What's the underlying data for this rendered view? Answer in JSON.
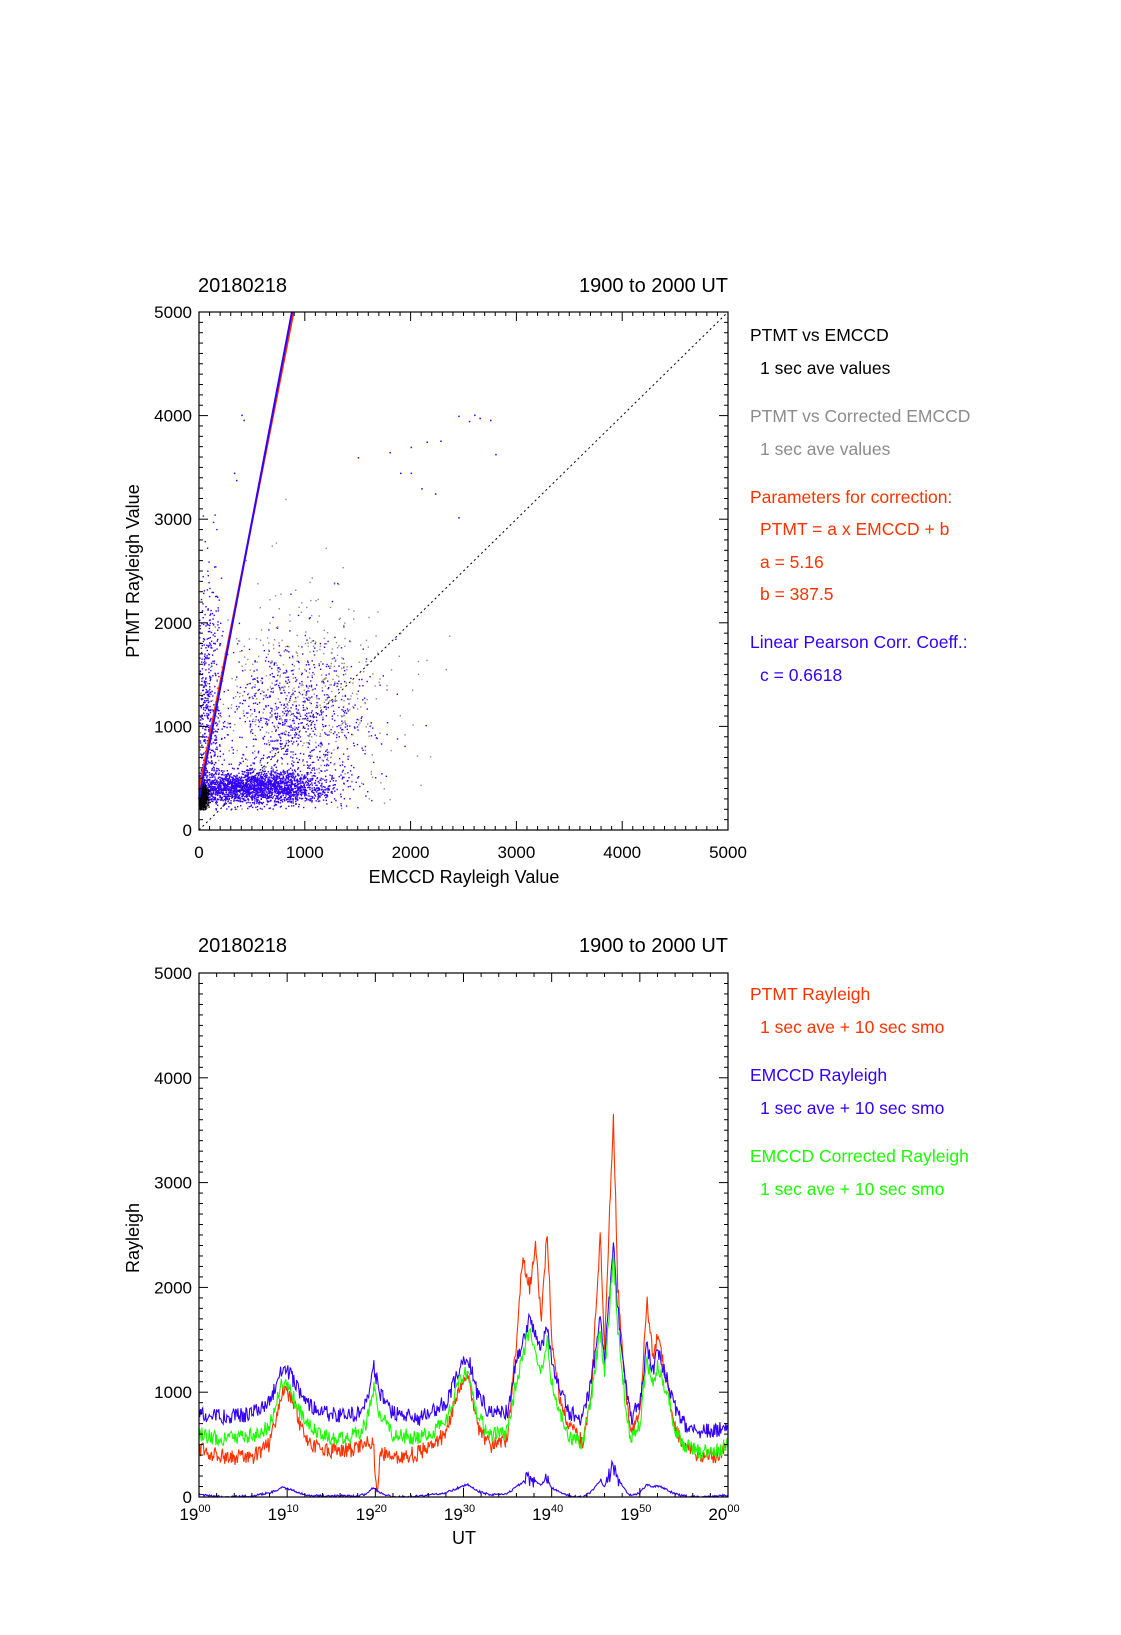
{
  "colors": {
    "black": "#000000",
    "gray": "#8c8c8c",
    "red": "#ff3300",
    "blue": "#3300ff",
    "green": "#1aff00"
  },
  "chart_data": [
    {
      "type": "scatter",
      "date_label": "20180218",
      "time_label": "1900 to 2000 UT",
      "xlabel": "EMCCD Rayleigh Value",
      "ylabel": "PTMT Rayleigh Value",
      "xlim": [
        0,
        5000
      ],
      "ylim": [
        0,
        5000
      ],
      "xticks": [
        "0",
        "1000",
        "2000",
        "3000",
        "4000",
        "5000"
      ],
      "yticks": [
        "0",
        "1000",
        "2000",
        "3000",
        "4000",
        "5000"
      ],
      "legend": [
        {
          "text": "PTMT vs EMCCD",
          "color": "black"
        },
        {
          "text": "1 sec ave values",
          "color": "black",
          "indent": true
        },
        {
          "text": "PTMT vs Corrected EMCCD",
          "color": "gray"
        },
        {
          "text": "1 sec ave values",
          "color": "gray",
          "indent": true
        },
        {
          "text": "Parameters for correction:",
          "color": "red"
        },
        {
          "text": "PTMT = a x EMCCD + b",
          "color": "red",
          "indent": true
        },
        {
          "text": "a = 5.16",
          "color": "red",
          "indent": true
        },
        {
          "text": "b =  387.5",
          "color": "red",
          "indent": true
        },
        {
          "text": "Linear Pearson Corr. Coeff.:",
          "color": "blue"
        },
        {
          "text": "c = 0.6618",
          "color": "blue",
          "indent": true
        }
      ],
      "fit_lines": [
        {
          "color": "red",
          "slope": 5.16,
          "intercept": 387.5
        },
        {
          "color": "blue",
          "slope": 5.35,
          "intercept": 300
        }
      ],
      "reference_line": {
        "style": "dotted",
        "from": [
          0,
          0
        ],
        "to": [
          5000,
          5000
        ]
      },
      "clusters": [
        {
          "color": "blue",
          "n": 2200,
          "cx": 550,
          "cy": 420,
          "sx": 330,
          "sy": 80
        },
        {
          "color": "blue",
          "n": 900,
          "cx": 900,
          "cy": 1050,
          "sx": 380,
          "sy": 420
        },
        {
          "color": "blue",
          "n": 500,
          "cx": 80,
          "cy": 1200,
          "sx": 60,
          "sy": 700
        },
        {
          "color": "gray",
          "n": 500,
          "cx": 1000,
          "cy": 1300,
          "sx": 450,
          "sy": 500
        },
        {
          "color": "black",
          "n": 500,
          "cx": 30,
          "cy": 310,
          "sx": 25,
          "sy": 70
        }
      ],
      "sparse_points": [
        [
          2450,
          4000
        ],
        [
          2550,
          3950
        ],
        [
          2650,
          3980
        ],
        [
          2750,
          3960
        ],
        [
          2600,
          4010
        ],
        [
          1800,
          3650
        ],
        [
          2000,
          3700
        ],
        [
          2150,
          3750
        ],
        [
          2280,
          3760
        ],
        [
          2800,
          3630
        ],
        [
          400,
          4010
        ],
        [
          420,
          3960
        ],
        [
          330,
          3450
        ],
        [
          350,
          3380
        ],
        [
          1900,
          3450
        ],
        [
          2000,
          3450
        ],
        [
          2100,
          3300
        ],
        [
          2450,
          3020
        ],
        [
          2230,
          3250
        ],
        [
          1500,
          3600
        ]
      ]
    },
    {
      "type": "line",
      "date_label": "20180218",
      "time_label": "1900 to 2000 UT",
      "xlabel": "UT",
      "ylabel": "Rayleigh",
      "ylim": [
        0,
        5000
      ],
      "xlim": [
        "19:00",
        "20:00"
      ],
      "yticks": [
        "0",
        "1000",
        "2000",
        "3000",
        "4000",
        "5000"
      ],
      "xticks": [
        {
          "base": "19",
          "sup": "00"
        },
        {
          "base": "19",
          "sup": "10"
        },
        {
          "base": "19",
          "sup": "20"
        },
        {
          "base": "19",
          "sup": "30"
        },
        {
          "base": "19",
          "sup": "40"
        },
        {
          "base": "19",
          "sup": "50"
        },
        {
          "base": "20",
          "sup": "00"
        }
      ],
      "legend": [
        {
          "text": "PTMT Rayleigh",
          "color": "red"
        },
        {
          "text": "1 sec ave + 10 sec smo",
          "color": "red",
          "indent": true
        },
        {
          "text": "EMCCD Rayleigh",
          "color": "blue"
        },
        {
          "text": "1 sec ave + 10 sec smo",
          "color": "blue",
          "indent": true
        },
        {
          "text": "EMCCD Corrected Rayleigh",
          "color": "green"
        },
        {
          "text": "1 sec ave + 10 sec smo",
          "color": "green",
          "indent": true
        }
      ],
      "series": [
        {
          "color": "red",
          "keypoints": [
            [
              0,
              450
            ],
            [
              3,
              380
            ],
            [
              6,
              380
            ],
            [
              8,
              500
            ],
            [
              9.5,
              1000
            ],
            [
              10.5,
              950
            ],
            [
              12,
              550
            ],
            [
              14,
              430
            ],
            [
              16,
              450
            ],
            [
              18,
              450
            ],
            [
              19,
              550
            ],
            [
              19.8,
              500
            ],
            [
              20.2,
              0
            ],
            [
              20.6,
              420
            ],
            [
              22,
              380
            ],
            [
              25,
              420
            ],
            [
              28,
              600
            ],
            [
              29.5,
              1050
            ],
            [
              30.5,
              1200
            ],
            [
              31.5,
              700
            ],
            [
              33,
              480
            ],
            [
              35,
              550
            ],
            [
              36,
              1500
            ],
            [
              36.7,
              2300
            ],
            [
              37.5,
              2000
            ],
            [
              38.2,
              2400
            ],
            [
              38.8,
              1700
            ],
            [
              39.5,
              2550
            ],
            [
              40,
              1500
            ],
            [
              41,
              900
            ],
            [
              42,
              680
            ],
            [
              43.5,
              520
            ],
            [
              44.5,
              1000
            ],
            [
              45.5,
              2500
            ],
            [
              46,
              1400
            ],
            [
              47,
              3650
            ],
            [
              47.5,
              2000
            ],
            [
              48.5,
              900
            ],
            [
              49,
              600
            ],
            [
              50,
              800
            ],
            [
              50.8,
              1900
            ],
            [
              51.5,
              1300
            ],
            [
              52,
              1550
            ],
            [
              53,
              1100
            ],
            [
              54,
              650
            ],
            [
              55,
              480
            ],
            [
              57,
              380
            ],
            [
              59,
              400
            ],
            [
              60,
              500
            ]
          ]
        },
        {
          "color": "blue",
          "keypoints": [
            [
              0,
              800
            ],
            [
              3,
              760
            ],
            [
              6,
              800
            ],
            [
              8,
              900
            ],
            [
              9.5,
              1250
            ],
            [
              10.5,
              1150
            ],
            [
              12,
              900
            ],
            [
              14,
              800
            ],
            [
              16,
              780
            ],
            [
              18,
              800
            ],
            [
              19,
              900
            ],
            [
              19.8,
              1250
            ],
            [
              20.5,
              1000
            ],
            [
              22,
              800
            ],
            [
              25,
              750
            ],
            [
              28,
              900
            ],
            [
              29.5,
              1200
            ],
            [
              30.5,
              1350
            ],
            [
              31.5,
              1000
            ],
            [
              33,
              800
            ],
            [
              35,
              820
            ],
            [
              36,
              1300
            ],
            [
              37.5,
              1700
            ],
            [
              38.8,
              1400
            ],
            [
              39.5,
              1650
            ],
            [
              40,
              1300
            ],
            [
              41,
              1000
            ],
            [
              42,
              800
            ],
            [
              43.5,
              750
            ],
            [
              44.5,
              1100
            ],
            [
              45.5,
              1700
            ],
            [
              46,
              1300
            ],
            [
              47,
              2400
            ],
            [
              47.5,
              1800
            ],
            [
              48.5,
              1000
            ],
            [
              49,
              750
            ],
            [
              50,
              900
            ],
            [
              50.8,
              1450
            ],
            [
              51.5,
              1200
            ],
            [
              52,
              1400
            ],
            [
              53,
              1150
            ],
            [
              54,
              850
            ],
            [
              55,
              700
            ],
            [
              57,
              620
            ],
            [
              59,
              650
            ],
            [
              60,
              700
            ]
          ]
        },
        {
          "color": "green",
          "keypoints": [
            [
              0,
              600
            ],
            [
              3,
              550
            ],
            [
              6,
              580
            ],
            [
              8,
              680
            ],
            [
              9.5,
              1100
            ],
            [
              10.5,
              1000
            ],
            [
              12,
              700
            ],
            [
              14,
              580
            ],
            [
              16,
              560
            ],
            [
              18,
              600
            ],
            [
              19,
              700
            ],
            [
              19.8,
              1050
            ],
            [
              20.5,
              800
            ],
            [
              22,
              600
            ],
            [
              25,
              560
            ],
            [
              28,
              700
            ],
            [
              29.5,
              1100
            ],
            [
              30.5,
              1200
            ],
            [
              31.5,
              800
            ],
            [
              33,
              580
            ],
            [
              35,
              620
            ],
            [
              36,
              1100
            ],
            [
              37.5,
              1600
            ],
            [
              38.8,
              1200
            ],
            [
              39.5,
              1500
            ],
            [
              40,
              1100
            ],
            [
              41,
              800
            ],
            [
              42,
              580
            ],
            [
              43.5,
              520
            ],
            [
              44.5,
              950
            ],
            [
              45.5,
              1600
            ],
            [
              46,
              1150
            ],
            [
              47,
              2300
            ],
            [
              47.5,
              1600
            ],
            [
              48.5,
              800
            ],
            [
              49,
              550
            ],
            [
              50,
              700
            ],
            [
              50.8,
              1300
            ],
            [
              51.5,
              1050
            ],
            [
              52,
              1250
            ],
            [
              53,
              1000
            ],
            [
              54,
              650
            ],
            [
              55,
              500
            ],
            [
              57,
              430
            ],
            [
              59,
              450
            ],
            [
              60,
              500
            ]
          ]
        },
        {
          "color": "blue",
          "keypoints": [
            [
              0,
              20
            ],
            [
              3,
              0
            ],
            [
              6,
              10
            ],
            [
              8,
              40
            ],
            [
              9.5,
              90
            ],
            [
              10.5,
              70
            ],
            [
              12,
              20
            ],
            [
              14,
              10
            ],
            [
              16,
              10
            ],
            [
              18,
              10
            ],
            [
              19,
              30
            ],
            [
              19.8,
              90
            ],
            [
              20.5,
              40
            ],
            [
              22,
              0
            ],
            [
              25,
              10
            ],
            [
              28,
              40
            ],
            [
              29.5,
              90
            ],
            [
              30.5,
              120
            ],
            [
              31.5,
              60
            ],
            [
              33,
              20
            ],
            [
              35,
              30
            ],
            [
              36,
              100
            ],
            [
              37.5,
              180
            ],
            [
              38.8,
              120
            ],
            [
              39.5,
              170
            ],
            [
              40,
              90
            ],
            [
              41,
              40
            ],
            [
              42,
              10
            ],
            [
              43.5,
              0
            ],
            [
              44.5,
              50
            ],
            [
              45.5,
              160
            ],
            [
              46,
              100
            ],
            [
              47,
              300
            ],
            [
              47.5,
              180
            ],
            [
              48.5,
              50
            ],
            [
              49,
              10
            ],
            [
              50,
              40
            ],
            [
              50.8,
              120
            ],
            [
              51.5,
              90
            ],
            [
              52,
              110
            ],
            [
              53,
              70
            ],
            [
              54,
              30
            ],
            [
              55,
              10
            ],
            [
              57,
              0
            ],
            [
              59,
              10
            ],
            [
              60,
              20
            ]
          ]
        }
      ]
    }
  ]
}
